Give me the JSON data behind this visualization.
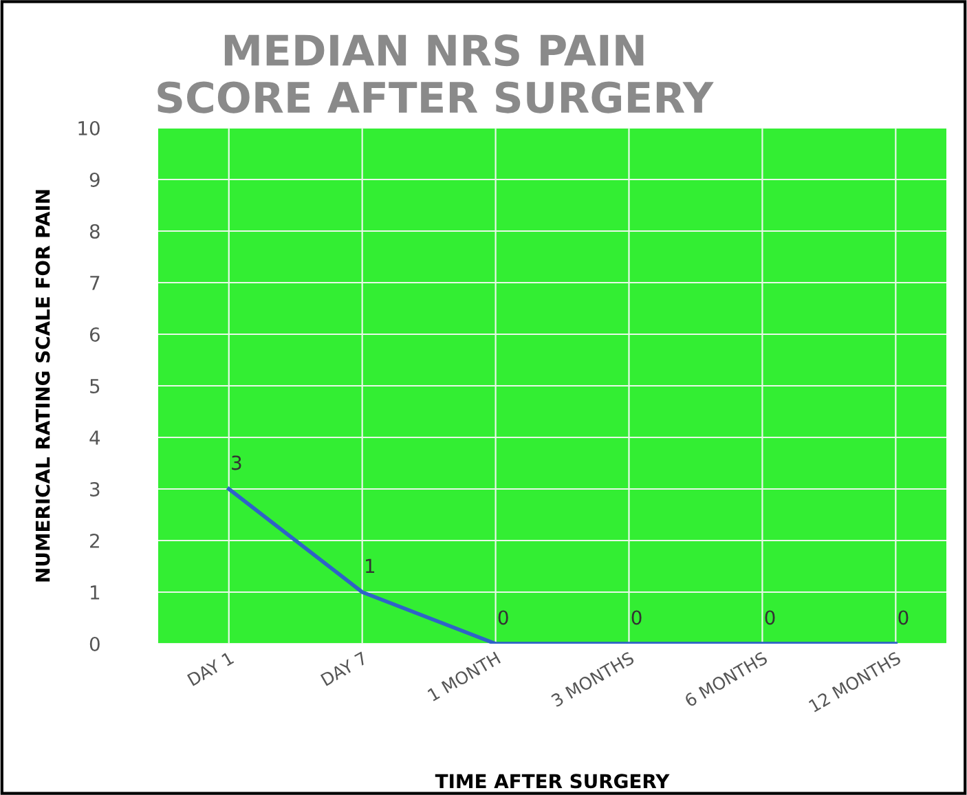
{
  "chart_data": {
    "type": "line",
    "title": "MEDIAN NRS PAIN\nSCORE AFTER SURGERY",
    "xlabel": "TIME AFTER SURGERY",
    "ylabel": "NUMERICAL RATING SCALE FOR PAIN",
    "categories": [
      "DAY 1",
      "DAY 7",
      "1 MONTH",
      "3 MONTHS",
      "6 MONTHS",
      "12 MONTHS"
    ],
    "series": [
      {
        "color": "#2f62c8",
        "values": [
          3,
          1,
          0,
          0,
          0,
          0
        ]
      }
    ],
    "ylim": [
      0,
      10
    ],
    "yticks": [
      0,
      1,
      2,
      3,
      4,
      5,
      6,
      7,
      8,
      9,
      10
    ],
    "grid": true,
    "data_labels": true,
    "marker": "none",
    "line_style": "solid"
  }
}
